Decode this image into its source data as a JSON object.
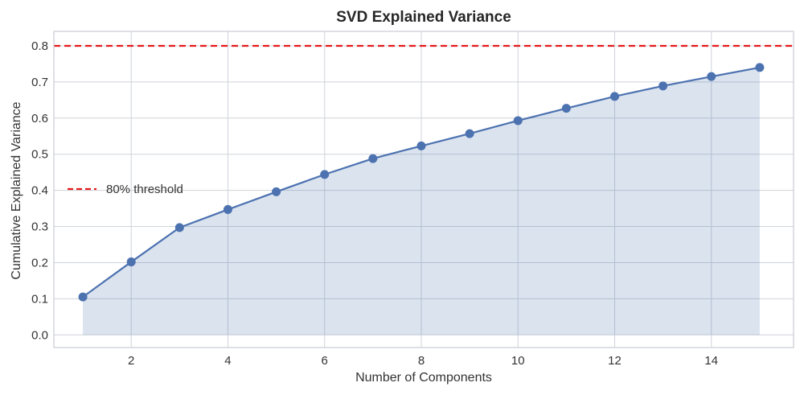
{
  "colors": {
    "series": "#4c72b0",
    "fill": "#4c72b0",
    "threshold": "#e41a1c",
    "grid": "#cfd3d9",
    "text": "#333333"
  },
  "chart_data": {
    "type": "line",
    "title": "SVD Explained Variance",
    "xlabel": "Number of Components",
    "ylabel": "Cumulative Explained Variance",
    "x": [
      1,
      2,
      3,
      4,
      5,
      6,
      7,
      8,
      9,
      10,
      11,
      12,
      13,
      14,
      15
    ],
    "series": [
      {
        "name": "Cumulative Explained Variance",
        "values": [
          0.105,
          0.202,
          0.297,
          0.347,
          0.396,
          0.444,
          0.488,
          0.523,
          0.557,
          0.593,
          0.627,
          0.66,
          0.689,
          0.715,
          0.74
        ],
        "marker": "circle",
        "filled_area": true
      }
    ],
    "xlim": [
      0.4,
      15.7
    ],
    "ylim": [
      -0.035,
      0.84
    ],
    "xticks": [
      2,
      4,
      6,
      8,
      10,
      12,
      14
    ],
    "xtick_labels": [
      "2",
      "4",
      "6",
      "8",
      "10",
      "12",
      "14"
    ],
    "yticks": [
      0.0,
      0.1,
      0.2,
      0.3,
      0.4,
      0.5,
      0.6,
      0.7,
      0.8
    ],
    "ytick_labels": [
      "0.0",
      "0.1",
      "0.2",
      "0.3",
      "0.4",
      "0.5",
      "0.6",
      "0.7",
      "0.8"
    ],
    "threshold": {
      "value": 0.8,
      "label": "80% threshold",
      "style": "dashed"
    },
    "legend": {
      "placement": "center-left",
      "entries": [
        "80% threshold"
      ]
    },
    "grid": true
  }
}
